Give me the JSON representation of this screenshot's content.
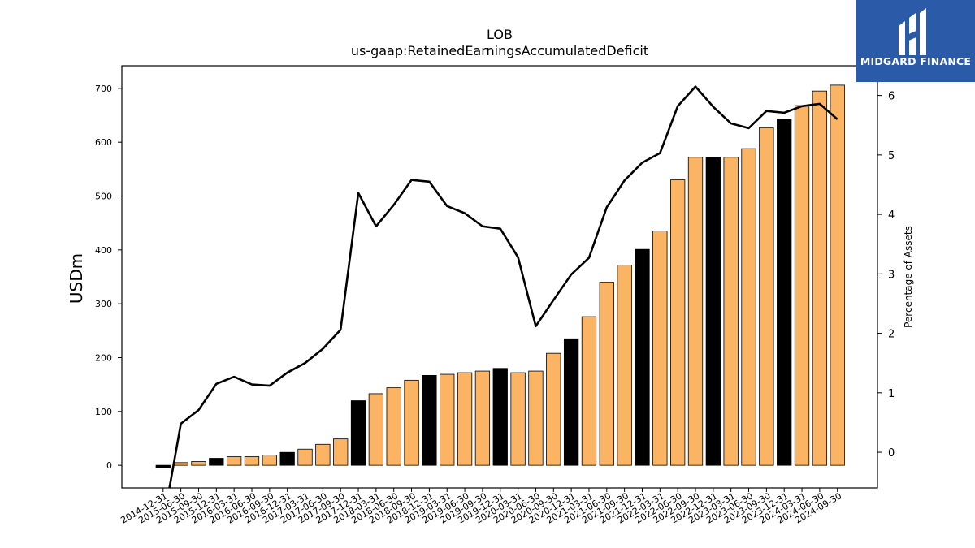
{
  "brand": {
    "name": "MIDGARD FINANCE",
    "bg_color": "#2b5aa8"
  },
  "chart_data": {
    "type": "bar",
    "title": "LOB",
    "subtitle": "us-gaap:RetainedEarningsAccumulatedDeficit",
    "ylabel": "USDm",
    "y2label": "Percentage of Assets",
    "ylim": [
      -42,
      742
    ],
    "y2lim": [
      -0.6,
      6.5
    ],
    "yticks": [
      0,
      100,
      200,
      300,
      400,
      500,
      600,
      700
    ],
    "y2ticks": [
      0,
      1,
      2,
      3,
      4,
      5,
      6
    ],
    "grid": false,
    "colors": {
      "bar": "#fbb464",
      "highlight": "#000000",
      "line": "#000000"
    },
    "categories": [
      "2014-12-31",
      "2015-06-30",
      "2015-09-30",
      "2015-12-31",
      "2016-03-31",
      "2016-06-30",
      "2016-09-30",
      "2016-12-31",
      "2017-03-31",
      "2017-06-30",
      "2017-09-30",
      "2017-12-31",
      "2018-03-31",
      "2018-06-30",
      "2018-09-30",
      "2018-12-31",
      "2019-03-31",
      "2019-06-30",
      "2019-09-30",
      "2019-12-31",
      "2020-03-31",
      "2020-06-30",
      "2020-09-30",
      "2020-12-31",
      "2021-03-31",
      "2021-06-30",
      "2021-09-30",
      "2021-12-31",
      "2022-03-31",
      "2022-06-30",
      "2022-09-30",
      "2022-12-31",
      "2023-03-31",
      "2023-06-30",
      "2023-09-30",
      "2023-12-31",
      "2024-03-31",
      "2024-06-30",
      "2024-09-30"
    ],
    "series": [
      {
        "type": "bar",
        "values": [
          -4,
          5,
          7,
          13,
          16,
          16,
          19,
          24,
          30,
          39,
          49,
          120,
          133,
          144,
          158,
          167,
          169,
          172,
          175,
          180,
          172,
          175,
          208,
          235,
          276,
          340,
          372,
          401,
          435,
          530,
          572,
          572,
          572,
          588,
          627,
          643,
          668,
          695,
          706
        ],
        "highlight": [
          true,
          false,
          false,
          true,
          false,
          false,
          false,
          true,
          false,
          false,
          false,
          true,
          false,
          false,
          false,
          true,
          false,
          false,
          false,
          true,
          false,
          false,
          false,
          true,
          false,
          false,
          false,
          true,
          false,
          false,
          false,
          true,
          false,
          false,
          false,
          true,
          false,
          false,
          false
        ]
      },
      {
        "type": "line",
        "axis": "right",
        "values": [
          -1.2,
          0.48,
          0.71,
          1.15,
          1.27,
          1.14,
          1.12,
          1.34,
          1.5,
          1.74,
          2.06,
          4.36,
          3.8,
          4.16,
          4.58,
          4.55,
          4.14,
          4.02,
          3.8,
          3.76,
          3.28,
          2.12,
          2.56,
          2.99,
          3.27,
          4.12,
          4.57,
          4.87,
          5.03,
          5.82,
          6.15,
          5.81,
          5.53,
          5.45,
          5.74,
          5.71,
          5.82,
          5.86,
          5.6
        ]
      }
    ]
  }
}
